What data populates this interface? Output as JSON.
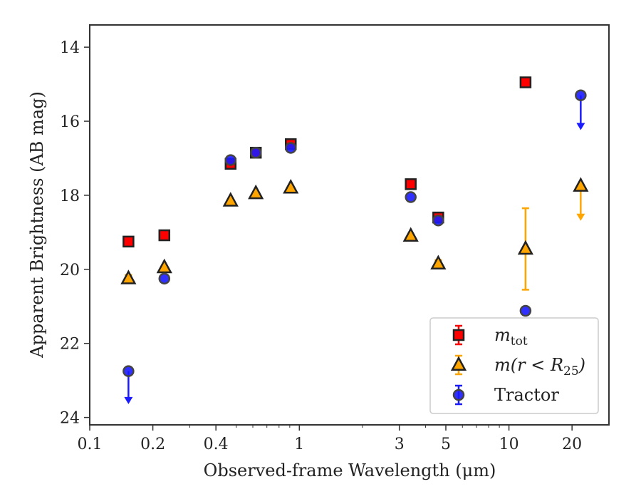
{
  "chart_data": {
    "type": "scatter",
    "xlabel": "Observed-frame Wavelength (μm)",
    "ylabel": "Apparent Brightness (AB mag)",
    "xscale": "log",
    "xlim": [
      0.1,
      30
    ],
    "ylim": [
      24.2,
      13.4
    ],
    "y_inverted": true,
    "x_tick_labels": [
      "0.1",
      "0.2",
      "0.4",
      "1",
      "3",
      "5",
      "10",
      "20"
    ],
    "x_ticks": [
      0.1,
      0.2,
      0.4,
      1,
      3,
      5,
      10,
      20
    ],
    "y_ticks": [
      14,
      16,
      18,
      20,
      22,
      24
    ],
    "y_tick_labels": [
      "14",
      "16",
      "18",
      "20",
      "22",
      "24"
    ],
    "legend_position": "lower-right",
    "series": [
      {
        "name": "m_tot",
        "legend_label_main": "m",
        "legend_label_sub": "tot",
        "marker": "square",
        "color": "#ff0000",
        "edge_color": "#222222",
        "points": [
          {
            "x": 0.153,
            "y": 19.25,
            "err": 0.0
          },
          {
            "x": 0.227,
            "y": 19.08,
            "err": 0.0
          },
          {
            "x": 0.47,
            "y": 17.15,
            "err": 0.1
          },
          {
            "x": 0.62,
            "y": 16.85,
            "err": 0.0
          },
          {
            "x": 0.91,
            "y": 16.62,
            "err": 0.1
          },
          {
            "x": 3.4,
            "y": 17.7,
            "err": 0.0
          },
          {
            "x": 4.6,
            "y": 18.6,
            "err": 0.1
          },
          {
            "x": 12.0,
            "y": 14.95,
            "err": 0.0
          }
        ]
      },
      {
        "name": "m(r < R25)",
        "legend_label_main": "m(r < R",
        "legend_label_sub": "25",
        "legend_label_tail": ")",
        "marker": "triangle",
        "color": "#ffa500",
        "edge_color": "#222222",
        "points": [
          {
            "x": 0.153,
            "y": 20.25,
            "err": 0.1
          },
          {
            "x": 0.227,
            "y": 19.95,
            "err": 0.0
          },
          {
            "x": 0.47,
            "y": 18.15,
            "err": 0.0
          },
          {
            "x": 0.62,
            "y": 17.95,
            "err": 0.0
          },
          {
            "x": 0.91,
            "y": 17.8,
            "err": 0.0
          },
          {
            "x": 3.4,
            "y": 19.1,
            "err": 0.0
          },
          {
            "x": 4.6,
            "y": 19.85,
            "err": 0.1
          },
          {
            "x": 12.0,
            "y": 19.45,
            "err": 1.1
          },
          {
            "x": 22.0,
            "y": 17.75,
            "upper_limit": true,
            "arrow_to": 18.65
          }
        ]
      },
      {
        "name": "Tractor",
        "marker": "circle",
        "color": "#1a1aff",
        "edge_color": "#444444",
        "points": [
          {
            "x": 0.153,
            "y": 22.75,
            "upper_limit": true,
            "arrow_to": 23.6
          },
          {
            "x": 0.227,
            "y": 20.25,
            "err": 0.0
          },
          {
            "x": 0.47,
            "y": 17.05,
            "err": 0.0
          },
          {
            "x": 0.62,
            "y": 16.85,
            "err": 0.0
          },
          {
            "x": 0.91,
            "y": 16.72,
            "err": 0.0
          },
          {
            "x": 3.4,
            "y": 18.05,
            "err": 0.0
          },
          {
            "x": 4.6,
            "y": 18.68,
            "err": 0.0
          },
          {
            "x": 12.0,
            "y": 21.12,
            "err": 0.0
          },
          {
            "x": 22.0,
            "y": 15.3,
            "upper_limit": true,
            "arrow_to": 16.2
          }
        ]
      }
    ]
  }
}
